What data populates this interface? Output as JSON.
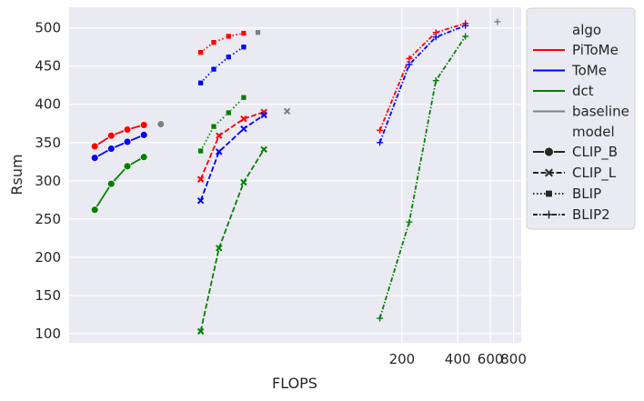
{
  "chart_data": {
    "type": "line",
    "xlabel": "FLOPS",
    "ylabel": "Rsum",
    "x_scale": "log",
    "xlim": [
      3.2,
      880
    ],
    "ylim": [
      88,
      527
    ],
    "x_ticks": [
      200,
      400,
      600,
      800
    ],
    "y_ticks": [
      100,
      150,
      200,
      250,
      300,
      350,
      400,
      450,
      500
    ],
    "grid": true,
    "background_color": "#eaeaf2",
    "legend": {
      "placement": "outside-right",
      "hue_title": "algo",
      "style_title": "model",
      "hue_entries": [
        {
          "label": "PiToMe",
          "color": "#ff0000"
        },
        {
          "label": "ToMe",
          "color": "#0000ff"
        },
        {
          "label": "dct",
          "color": "#008000"
        },
        {
          "label": "baseline",
          "color": "#808080"
        }
      ],
      "style_entries": [
        {
          "label": "CLIP_B",
          "dash": "solid",
          "marker": "circle"
        },
        {
          "label": "CLIP_L",
          "dash": "dashed",
          "marker": "x"
        },
        {
          "label": "BLIP",
          "dash": "dotted",
          "marker": "square"
        },
        {
          "label": "BLIP2",
          "dash": "dashdot",
          "marker": "plus"
        }
      ]
    },
    "series": [
      {
        "algo": "PiToMe",
        "model": "CLIP_B",
        "color": "#ff0000",
        "x": [
          4.4,
          5.4,
          6.6,
          8.1
        ],
        "y": [
          345,
          359,
          367,
          373
        ]
      },
      {
        "algo": "ToMe",
        "model": "CLIP_B",
        "color": "#0000ff",
        "x": [
          4.4,
          5.4,
          6.6,
          8.1
        ],
        "y": [
          330,
          342,
          351,
          360
        ]
      },
      {
        "algo": "dct",
        "model": "CLIP_B",
        "color": "#008000",
        "x": [
          4.4,
          5.4,
          6.6,
          8.1
        ],
        "y": [
          262,
          296,
          319,
          331
        ]
      },
      {
        "algo": "baseline",
        "model": "CLIP_B",
        "color": "#808080",
        "x": [
          10
        ],
        "y": [
          374
        ]
      },
      {
        "algo": "PiToMe",
        "model": "CLIP_L",
        "color": "#ff0000",
        "x": [
          16.4,
          20.6,
          28,
          36
        ],
        "y": [
          302,
          359,
          381,
          390
        ]
      },
      {
        "algo": "ToMe",
        "model": "CLIP_L",
        "color": "#0000ff",
        "x": [
          16.4,
          20.6,
          28,
          36
        ],
        "y": [
          274,
          338,
          368,
          386
        ]
      },
      {
        "algo": "dct",
        "model": "CLIP_L",
        "color": "#008000",
        "x": [
          16.4,
          20.6,
          28,
          36
        ],
        "y": [
          103,
          212,
          298,
          341
        ]
      },
      {
        "algo": "baseline",
        "model": "CLIP_L",
        "color": "#808080",
        "x": [
          48
        ],
        "y": [
          391
        ]
      },
      {
        "algo": "PiToMe",
        "model": "BLIP",
        "color": "#ff0000",
        "x": [
          16.4,
          19.3,
          23.2,
          28
        ],
        "y": [
          468,
          481,
          489,
          493
        ]
      },
      {
        "algo": "ToMe",
        "model": "BLIP",
        "color": "#0000ff",
        "x": [
          16.4,
          19.3,
          23.2,
          28
        ],
        "y": [
          428,
          446,
          462,
          475
        ]
      },
      {
        "algo": "dct",
        "model": "BLIP",
        "color": "#008000",
        "x": [
          16.4,
          19.3,
          23.2,
          28
        ],
        "y": [
          339,
          371,
          389,
          409
        ]
      },
      {
        "algo": "baseline",
        "model": "BLIP",
        "color": "#808080",
        "x": [
          33.4
        ],
        "y": [
          494
        ]
      },
      {
        "algo": "PiToMe",
        "model": "BLIP2",
        "color": "#ff0000",
        "x": [
          152,
          219,
          305,
          440
        ],
        "y": [
          366,
          460,
          494,
          506
        ]
      },
      {
        "algo": "ToMe",
        "model": "BLIP2",
        "color": "#0000ff",
        "x": [
          152,
          219,
          305,
          440
        ],
        "y": [
          350,
          452,
          488,
          503
        ]
      },
      {
        "algo": "dct",
        "model": "BLIP2",
        "color": "#008000",
        "x": [
          152,
          219,
          305,
          440
        ],
        "y": [
          120,
          246,
          431,
          489
        ]
      },
      {
        "algo": "baseline",
        "model": "BLIP2",
        "color": "#808080",
        "x": [
          655
        ],
        "y": [
          508
        ]
      }
    ]
  }
}
